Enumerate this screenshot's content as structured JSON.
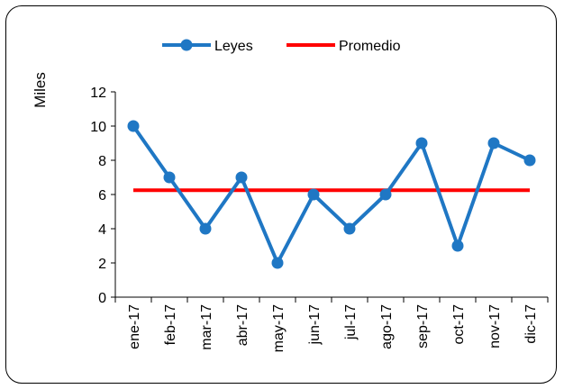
{
  "chart_data": {
    "type": "line",
    "title": "",
    "xlabel": "",
    "ylabel": "Miles",
    "ylim": [
      0,
      12
    ],
    "yticks": [
      0,
      2,
      4,
      6,
      8,
      10,
      12
    ],
    "grid": false,
    "legend_position": "top-center",
    "categories": [
      "ene-17",
      "feb-17",
      "mar-17",
      "abr-17",
      "may-17",
      "jun-17",
      "jul-17",
      "ago-17",
      "sep-17",
      "oct-17",
      "nov-17",
      "dic-17"
    ],
    "series": [
      {
        "name": "Leyes",
        "color": "#1F77C4",
        "marker": "circle",
        "values": [
          10,
          7,
          4,
          7,
          2,
          6,
          4,
          6,
          9,
          3,
          9,
          8
        ]
      },
      {
        "name": "Promedio",
        "color": "#FF0000",
        "marker": "none",
        "values": [
          6.25,
          6.25,
          6.25,
          6.25,
          6.25,
          6.25,
          6.25,
          6.25,
          6.25,
          6.25,
          6.25,
          6.25
        ]
      }
    ]
  }
}
